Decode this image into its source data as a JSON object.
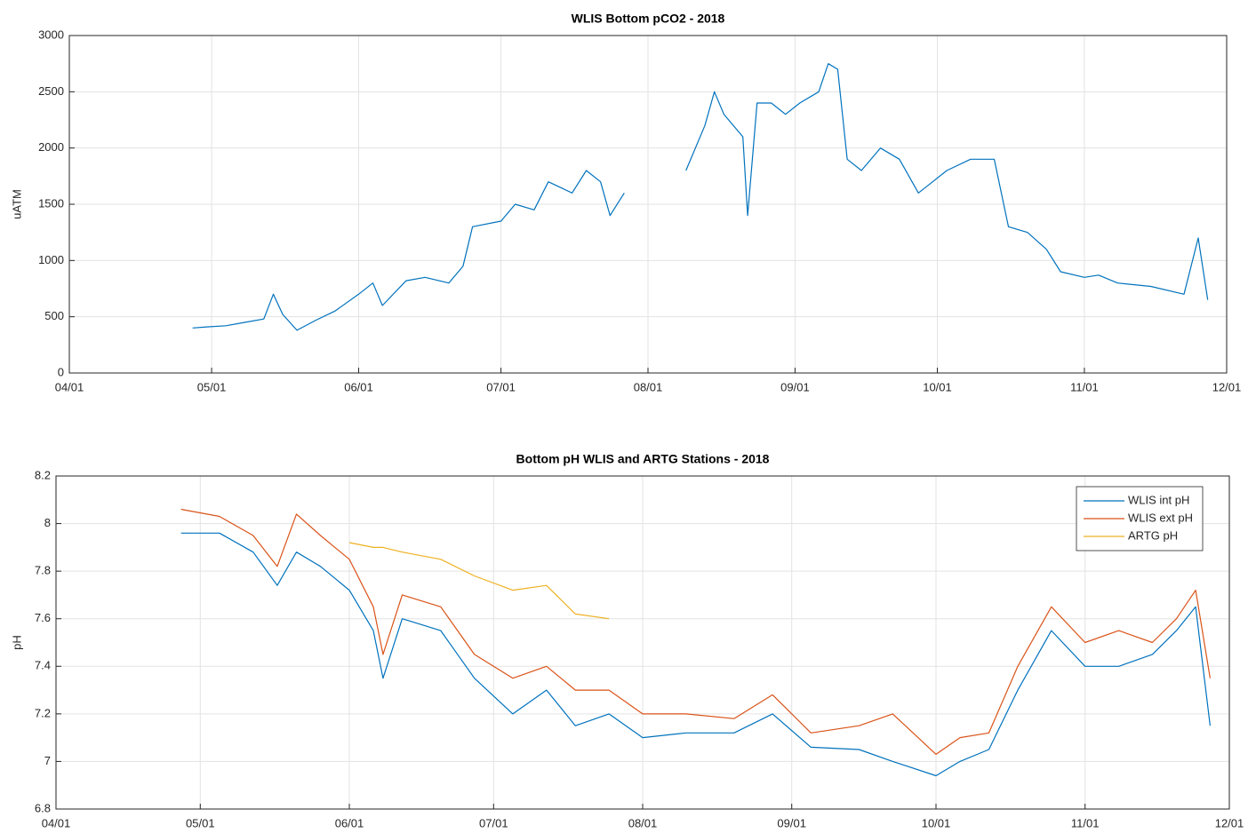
{
  "chart_data": [
    {
      "type": "line",
      "title": "WLIS Bottom pCO2 - 2018",
      "y_label": "uATM",
      "color": "#0072bd",
      "grid": true,
      "xlim": [
        "04/01",
        "12/01"
      ],
      "xticks": [
        "04/01",
        "05/01",
        "06/01",
        "07/01",
        "08/01",
        "09/01",
        "10/01",
        "11/01",
        "12/01"
      ],
      "ylim": [
        0,
        3000
      ],
      "yticks": [
        0,
        500,
        1000,
        1500,
        2000,
        2500,
        3000
      ],
      "x": [
        "04/27",
        "04/30",
        "05/04",
        "05/08",
        "05/12",
        "05/14",
        "05/16",
        "05/19",
        "05/23",
        "05/27",
        "06/01",
        "06/04",
        "06/06",
        "06/11",
        "06/15",
        "06/20",
        "06/23",
        "06/25",
        "07/01",
        "07/04",
        "07/08",
        "07/11",
        "07/16",
        "07/19",
        "07/22",
        "07/24",
        "07/27",
        "08/02",
        "08/09",
        "08/13",
        "08/15",
        "08/17",
        "08/21",
        "08/22",
        "08/24",
        "08/27",
        "08/30",
        "09/02",
        "09/06",
        "09/08",
        "09/10",
        "09/12",
        "09/15",
        "09/19",
        "09/23",
        "09/27",
        "09/30",
        "10/03",
        "10/08",
        "10/13",
        "10/16",
        "10/20",
        "10/24",
        "10/27",
        "11/01",
        "11/04",
        "11/08",
        "11/15",
        "11/22",
        "11/25",
        "11/27"
      ],
      "values": [
        400,
        410,
        420,
        450,
        480,
        700,
        520,
        380,
        470,
        550,
        700,
        800,
        600,
        820,
        850,
        800,
        950,
        1300,
        1350,
        1500,
        1450,
        1700,
        1600,
        1800,
        1700,
        1400,
        1600,
        null,
        1800,
        2200,
        2500,
        2300,
        2100,
        1400,
        2400,
        2400,
        2300,
        2400,
        2500,
        2750,
        2700,
        1900,
        1800,
        2000,
        1900,
        1600,
        1700,
        1800,
        1900,
        1900,
        1300,
        1250,
        1100,
        900,
        850,
        870,
        800,
        770,
        700,
        1200,
        650
      ]
    },
    {
      "type": "line",
      "title": "Bottom pH WLIS and ARTG Stations - 2018",
      "y_label": "pH",
      "grid": true,
      "legend": "northeast",
      "xlim": [
        "04/01",
        "12/01"
      ],
      "xticks": [
        "04/01",
        "05/01",
        "06/01",
        "07/01",
        "08/01",
        "09/01",
        "10/01",
        "11/01",
        "12/01"
      ],
      "ylim": [
        6.8,
        8.2
      ],
      "yticks": [
        6.8,
        7,
        7.2,
        7.4,
        7.6,
        7.8,
        8,
        8.2
      ],
      "x": [
        "04/27",
        "05/05",
        "05/12",
        "05/17",
        "05/21",
        "05/26",
        "06/01",
        "06/06",
        "06/08",
        "06/12",
        "06/20",
        "06/27",
        "07/05",
        "07/12",
        "07/18",
        "07/25",
        "08/01",
        "08/10",
        "08/20",
        "08/28",
        "09/05",
        "09/15",
        "09/22",
        "10/01",
        "10/06",
        "10/12",
        "10/18",
        "10/25",
        "11/01",
        "11/08",
        "11/15",
        "11/20",
        "11/24",
        "11/27"
      ],
      "series": [
        {
          "name": "WLIS int pH",
          "color": "#0072bd",
          "values": [
            7.96,
            7.96,
            7.88,
            7.74,
            7.88,
            7.82,
            7.72,
            7.55,
            7.35,
            7.6,
            7.55,
            7.35,
            7.2,
            7.3,
            7.15,
            7.2,
            7.1,
            7.12,
            7.12,
            7.2,
            7.06,
            7.05,
            7.0,
            6.94,
            7.0,
            7.05,
            7.3,
            7.55,
            7.4,
            7.4,
            7.45,
            7.55,
            7.65,
            7.15
          ]
        },
        {
          "name": "WLIS ext pH",
          "color": "#d95319",
          "values": [
            8.06,
            8.03,
            7.95,
            7.82,
            8.04,
            7.95,
            7.85,
            7.65,
            7.45,
            7.7,
            7.65,
            7.45,
            7.35,
            7.4,
            7.3,
            7.3,
            7.2,
            7.2,
            7.18,
            7.28,
            7.12,
            7.15,
            7.2,
            7.03,
            7.1,
            7.12,
            7.4,
            7.65,
            7.5,
            7.55,
            7.5,
            7.6,
            7.72,
            7.35
          ]
        },
        {
          "name": "ARTG pH",
          "color": "#edb120",
          "values": [
            null,
            null,
            null,
            null,
            null,
            null,
            7.92,
            7.9,
            7.9,
            7.88,
            7.85,
            7.78,
            7.72,
            7.74,
            7.62,
            7.6,
            null,
            null,
            null,
            null,
            null,
            null,
            null,
            null,
            null,
            null,
            null,
            null,
            null,
            null,
            null,
            null,
            null,
            null
          ]
        }
      ]
    }
  ]
}
